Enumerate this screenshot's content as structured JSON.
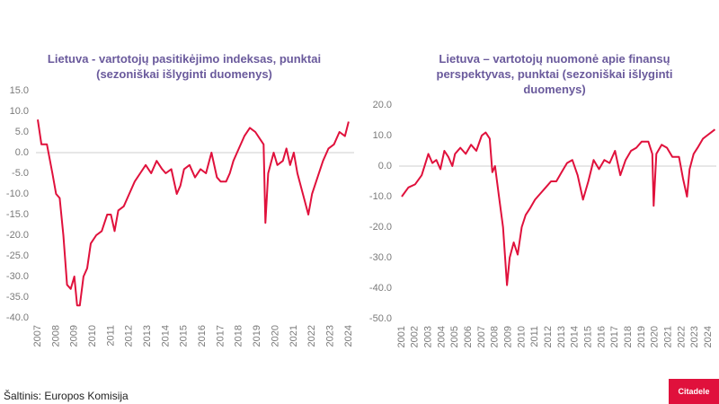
{
  "chart_data": [
    {
      "type": "line",
      "title": "Lietuva - vartotojų pasitikėjimo indeksas, punktai (sezoniškai išlyginti duomenys)",
      "color": "#e0113c",
      "x": [
        2007.0,
        2007.2,
        2007.5,
        2007.8,
        2008.0,
        2008.2,
        2008.4,
        2008.6,
        2008.8,
        2009.0,
        2009.15,
        2009.3,
        2009.5,
        2009.7,
        2009.9,
        2010.2,
        2010.5,
        2010.8,
        2011.0,
        2011.2,
        2011.4,
        2011.7,
        2012.0,
        2012.3,
        2012.6,
        2012.9,
        2013.2,
        2013.5,
        2013.8,
        2014.0,
        2014.3,
        2014.6,
        2014.8,
        2015.0,
        2015.3,
        2015.6,
        2015.9,
        2016.2,
        2016.5,
        2016.8,
        2017.0,
        2017.3,
        2017.5,
        2017.7,
        2018.0,
        2018.3,
        2018.6,
        2018.9,
        2019.2,
        2019.35,
        2019.45,
        2019.6,
        2019.9,
        2020.1,
        2020.4,
        2020.6,
        2020.8,
        2021.0,
        2021.2,
        2021.5,
        2021.8,
        2022.0,
        2022.3,
        2022.6,
        2022.9,
        2023.2,
        2023.5,
        2023.8,
        2024.0
      ],
      "values": [
        8,
        2,
        2,
        -5,
        -10,
        -11,
        -20,
        -32,
        -33,
        -30,
        -37,
        -37,
        -30,
        -28,
        -22,
        -20,
        -19,
        -15,
        -15,
        -19,
        -14,
        -13,
        -10,
        -7,
        -5,
        -3,
        -5,
        -2,
        -4,
        -5,
        -4,
        -10,
        -8,
        -4,
        -3,
        -6,
        -4,
        -5,
        0,
        -6,
        -7,
        -7,
        -5,
        -2,
        1,
        4,
        6,
        5,
        3,
        2,
        -17,
        -5,
        0,
        -3,
        -2,
        1,
        -3,
        0,
        -5,
        -10,
        -15,
        -10,
        -6,
        -2,
        1,
        2,
        5,
        4,
        7.5
      ],
      "xlim": [
        2006.9,
        2024.3
      ],
      "xticks": [
        2007,
        2008,
        2009,
        2010,
        2011,
        2012,
        2013,
        2014,
        2015,
        2016,
        2017,
        2018,
        2019,
        2020,
        2021,
        2022,
        2023,
        2024
      ],
      "ylim": [
        -40,
        15
      ],
      "yticks": [
        {
          "value": -40,
          "label": "-40.0"
        },
        {
          "value": -35,
          "label": "-35.0"
        },
        {
          "value": -30,
          "label": "-30.0"
        },
        {
          "value": -25,
          "label": "-25.0"
        },
        {
          "value": -20,
          "label": "-20.0"
        },
        {
          "value": -15,
          "label": "-15.0"
        },
        {
          "value": -10,
          "label": "-10.0"
        },
        {
          "value": -5,
          "label": "-5.0"
        },
        {
          "value": 0,
          "label": "0.0"
        },
        {
          "value": 5,
          "label": "5.0"
        },
        {
          "value": 10,
          "label": "10.0"
        },
        {
          "value": 15,
          "label": "15.0"
        }
      ]
    },
    {
      "type": "line",
      "title": "Lietuva – vartotojų nuomonė apie finansų perspektyvas, punktai (sezoniškai išlyginti duomenys)",
      "color": "#e0113c",
      "x": [
        2001.0,
        2001.5,
        2002.0,
        2002.5,
        2003.0,
        2003.3,
        2003.6,
        2003.9,
        2004.2,
        2004.5,
        2004.8,
        2005.0,
        2005.4,
        2005.8,
        2006.2,
        2006.6,
        2007.0,
        2007.3,
        2007.6,
        2007.8,
        2008.0,
        2008.3,
        2008.6,
        2008.9,
        2009.1,
        2009.4,
        2009.7,
        2010.0,
        2010.3,
        2010.6,
        2011.0,
        2011.4,
        2011.8,
        2012.2,
        2012.6,
        2013.0,
        2013.4,
        2013.8,
        2014.2,
        2014.6,
        2015.0,
        2015.4,
        2015.8,
        2016.2,
        2016.6,
        2017.0,
        2017.4,
        2017.8,
        2018.2,
        2018.6,
        2019.0,
        2019.5,
        2019.8,
        2019.9,
        2020.1,
        2020.5,
        2020.9,
        2021.3,
        2021.8,
        2022.1,
        2022.4,
        2022.6,
        2022.9,
        2023.2,
        2023.6,
        2023.9,
        2024.2,
        2024.5
      ],
      "values": [
        -10,
        -7,
        -6,
        -3,
        4,
        1,
        2,
        -1,
        5,
        3,
        0,
        4,
        6,
        4,
        7,
        5,
        10,
        11,
        9,
        -2,
        0,
        -10,
        -20,
        -39,
        -30,
        -25,
        -29,
        -20,
        -16,
        -14,
        -11,
        -9,
        -7,
        -5,
        -5,
        -2,
        1,
        2,
        -3,
        -11,
        -5,
        2,
        -1,
        2,
        1,
        5,
        -3,
        2,
        5,
        6,
        8,
        8,
        4,
        -13,
        4,
        7,
        6,
        3,
        3,
        -4,
        -10,
        -1,
        4,
        6,
        9,
        10,
        11,
        12
      ],
      "xlim": [
        2000.8,
        2024.6
      ],
      "xticks": [
        2001,
        2002,
        2003,
        2004,
        2005,
        2006,
        2007,
        2008,
        2009,
        2010,
        2011,
        2012,
        2013,
        2014,
        2015,
        2016,
        2017,
        2018,
        2019,
        2020,
        2021,
        2022,
        2023,
        2024
      ],
      "ylim": [
        -50,
        20
      ],
      "yticks": [
        {
          "value": -50,
          "label": "-50.0"
        },
        {
          "value": -40,
          "label": "-40.0"
        },
        {
          "value": -30,
          "label": "-30.0"
        },
        {
          "value": -20,
          "label": "-20.0"
        },
        {
          "value": -10,
          "label": "-10.0"
        },
        {
          "value": 0,
          "label": "0.0"
        },
        {
          "value": 10,
          "label": "10.0"
        },
        {
          "value": 20,
          "label": "20.0"
        }
      ]
    }
  ],
  "source": "Šaltinis: Europos Komisija",
  "logo": "Citadele"
}
